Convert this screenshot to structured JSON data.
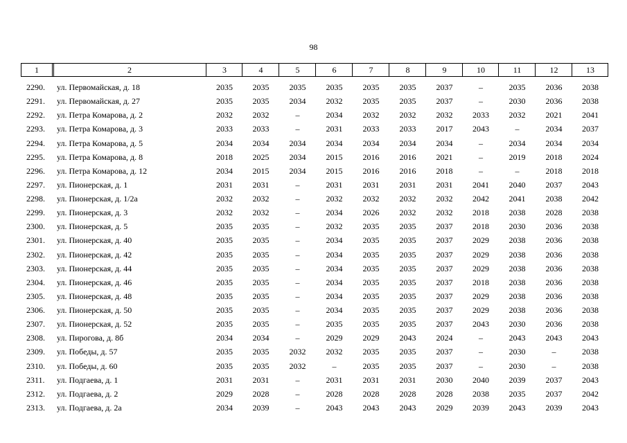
{
  "page_number": "98",
  "table": {
    "header": [
      "1",
      "2",
      "3",
      "4",
      "5",
      "6",
      "7",
      "8",
      "9",
      "10",
      "11",
      "12",
      "13"
    ],
    "rows": [
      [
        "2290.",
        "ул. Первомайская, д. 18",
        "2035",
        "2035",
        "2035",
        "2035",
        "2035",
        "2035",
        "2037",
        "–",
        "2035",
        "2036",
        "2038"
      ],
      [
        "2291.",
        "ул. Первомайская, д. 27",
        "2035",
        "2035",
        "2034",
        "2032",
        "2035",
        "2035",
        "2037",
        "–",
        "2030",
        "2036",
        "2038"
      ],
      [
        "2292.",
        "ул. Петра Комарова, д. 2",
        "2032",
        "2032",
        "–",
        "2034",
        "2032",
        "2032",
        "2032",
        "2033",
        "2032",
        "2021",
        "2041"
      ],
      [
        "2293.",
        "ул. Петра Комарова, д. 3",
        "2033",
        "2033",
        "–",
        "2031",
        "2033",
        "2033",
        "2017",
        "2043",
        "–",
        "2034",
        "2037"
      ],
      [
        "2294.",
        "ул. Петра Комарова, д. 5",
        "2034",
        "2034",
        "2034",
        "2034",
        "2034",
        "2034",
        "2034",
        "–",
        "2034",
        "2034",
        "2034"
      ],
      [
        "2295.",
        "ул. Петра Комарова, д. 8",
        "2018",
        "2025",
        "2034",
        "2015",
        "2016",
        "2016",
        "2021",
        "–",
        "2019",
        "2018",
        "2024"
      ],
      [
        "2296.",
        "ул. Петра Комарова, д. 12",
        "2034",
        "2015",
        "2034",
        "2015",
        "2016",
        "2016",
        "2018",
        "–",
        "–",
        "2018",
        "2018"
      ],
      [
        "2297.",
        "ул. Пионерская, д. 1",
        "2031",
        "2031",
        "–",
        "2031",
        "2031",
        "2031",
        "2031",
        "2041",
        "2040",
        "2037",
        "2043"
      ],
      [
        "2298.",
        "ул. Пионерская, д. 1/2а",
        "2032",
        "2032",
        "–",
        "2032",
        "2032",
        "2032",
        "2032",
        "2042",
        "2041",
        "2038",
        "2042"
      ],
      [
        "2299.",
        "ул. Пионерская, д. 3",
        "2032",
        "2032",
        "–",
        "2034",
        "2026",
        "2032",
        "2032",
        "2018",
        "2038",
        "2028",
        "2038"
      ],
      [
        "2300.",
        "ул. Пионерская, д. 5",
        "2035",
        "2035",
        "–",
        "2032",
        "2035",
        "2035",
        "2037",
        "2018",
        "2030",
        "2036",
        "2038"
      ],
      [
        "2301.",
        "ул. Пионерская, д. 40",
        "2035",
        "2035",
        "–",
        "2034",
        "2035",
        "2035",
        "2037",
        "2029",
        "2038",
        "2036",
        "2038"
      ],
      [
        "2302.",
        "ул. Пионерская, д. 42",
        "2035",
        "2035",
        "–",
        "2034",
        "2035",
        "2035",
        "2037",
        "2029",
        "2038",
        "2036",
        "2038"
      ],
      [
        "2303.",
        "ул. Пионерская, д. 44",
        "2035",
        "2035",
        "–",
        "2034",
        "2035",
        "2035",
        "2037",
        "2029",
        "2038",
        "2036",
        "2038"
      ],
      [
        "2304.",
        "ул. Пионерская, д. 46",
        "2035",
        "2035",
        "–",
        "2034",
        "2035",
        "2035",
        "2037",
        "2018",
        "2038",
        "2036",
        "2038"
      ],
      [
        "2305.",
        "ул. Пионерская, д. 48",
        "2035",
        "2035",
        "–",
        "2034",
        "2035",
        "2035",
        "2037",
        "2029",
        "2038",
        "2036",
        "2038"
      ],
      [
        "2306.",
        "ул. Пионерская, д. 50",
        "2035",
        "2035",
        "–",
        "2034",
        "2035",
        "2035",
        "2037",
        "2029",
        "2038",
        "2036",
        "2038"
      ],
      [
        "2307.",
        "ул. Пионерская, д. 52",
        "2035",
        "2035",
        "–",
        "2035",
        "2035",
        "2035",
        "2037",
        "2043",
        "2030",
        "2036",
        "2038"
      ],
      [
        "2308.",
        "ул. Пирогова, д. 8б",
        "2034",
        "2034",
        "–",
        "2029",
        "2029",
        "2043",
        "2024",
        "–",
        "2043",
        "2043",
        "2043"
      ],
      [
        "2309.",
        "ул. Победы, д. 57",
        "2035",
        "2035",
        "2032",
        "2032",
        "2035",
        "2035",
        "2037",
        "–",
        "2030",
        "–",
        "2038"
      ],
      [
        "2310.",
        "ул. Победы, д. 60",
        "2035",
        "2035",
        "2032",
        "–",
        "2035",
        "2035",
        "2037",
        "–",
        "2030",
        "–",
        "2038"
      ],
      [
        "2311.",
        "ул. Подгаева, д. 1",
        "2031",
        "2031",
        "–",
        "2031",
        "2031",
        "2031",
        "2030",
        "2040",
        "2039",
        "2037",
        "2043"
      ],
      [
        "2312.",
        "ул. Подгаева, д. 2",
        "2029",
        "2028",
        "–",
        "2028",
        "2028",
        "2028",
        "2028",
        "2038",
        "2035",
        "2037",
        "2042"
      ],
      [
        "2313.",
        "ул. Подгаева, д. 2а",
        "2034",
        "2039",
        "–",
        "2043",
        "2043",
        "2043",
        "2029",
        "2039",
        "2043",
        "2039",
        "2043"
      ]
    ]
  }
}
